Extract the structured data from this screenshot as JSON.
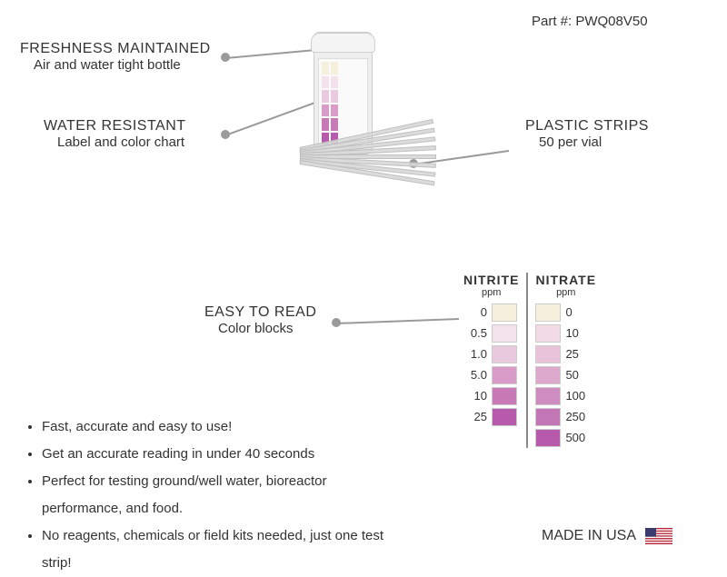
{
  "part_number_label": "Part #: PWQ08V50",
  "callouts": {
    "freshness": {
      "title": "FRESHNESS MAINTAINED",
      "sub": "Air and water tight bottle"
    },
    "water_resistant": {
      "title": "WATER RESISTANT",
      "sub": "Label and color chart"
    },
    "plastic_strips": {
      "title": "PLASTIC STRIPS",
      "sub": "50 per vial"
    },
    "easy_read": {
      "title": "EASY TO READ",
      "sub": "Color blocks"
    }
  },
  "leader_color": "#9a9a9a",
  "chart": {
    "nitrite": {
      "header": "NITRITE",
      "unit": "ppm",
      "rows": [
        {
          "value": "0",
          "color": "#f4f0dc"
        },
        {
          "value": "0.5",
          "color": "#f3e2ec"
        },
        {
          "value": "1.0",
          "color": "#e8c9de"
        },
        {
          "value": "5.0",
          "color": "#d99cc8"
        },
        {
          "value": "10",
          "color": "#c77ab5"
        },
        {
          "value": "25",
          "color": "#b85aab"
        }
      ]
    },
    "nitrate": {
      "header": "NITRATE",
      "unit": "ppm",
      "rows": [
        {
          "value": "0",
          "color": "#f4f0dc"
        },
        {
          "value": "10",
          "color": "#f3dbe6"
        },
        {
          "value": "25",
          "color": "#e8c3da"
        },
        {
          "value": "50",
          "color": "#dca9cd"
        },
        {
          "value": "100",
          "color": "#ce8dc0"
        },
        {
          "value": "250",
          "color": "#c376b5"
        },
        {
          "value": "500",
          "color": "#b85aab"
        }
      ]
    }
  },
  "bullets": [
    "Fast, accurate and easy to use!",
    "Get an accurate reading in under 40 seconds",
    "Perfect for testing ground/well water, bioreactor performance, and food.",
    "No reagents, chemicals or field kits needed, just one test strip!"
  ],
  "made_in": "MADE IN USA",
  "flag_colors": {
    "red": "#b22234",
    "white": "#ffffff",
    "blue": "#3c3b6e"
  },
  "bottle_label_swatches": [
    "#f4f0dc",
    "#f3e2ec",
    "#e8c9de",
    "#d99cc8",
    "#c77ab5",
    "#b85aab"
  ]
}
